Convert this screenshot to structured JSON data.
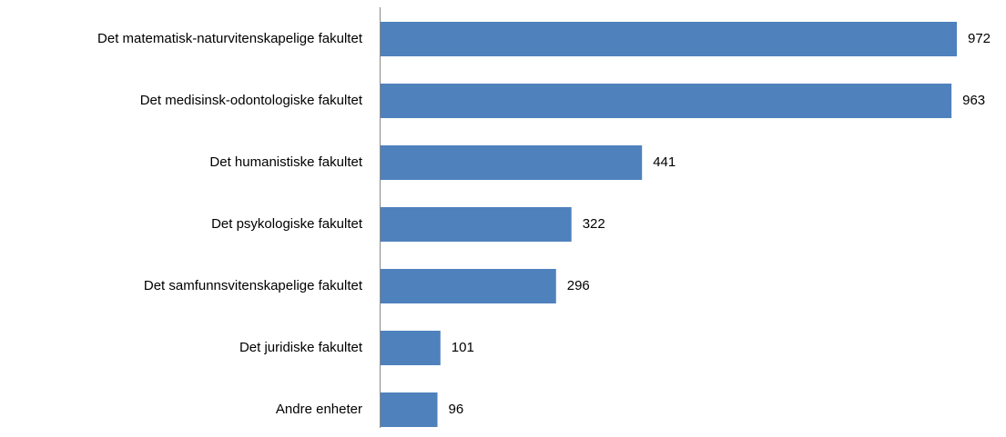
{
  "chart_data": {
    "type": "bar",
    "orientation": "horizontal",
    "color": "#4f81bd",
    "categories": [
      "Det matematisk-naturvitenskapelige fakultet",
      "Det medisinsk-odontologiske fakultet",
      "Det humanistiske fakultet",
      "Det psykologiske fakultet",
      "Det samfunnsvitenskapelige fakultet",
      "Det juridiske fakultet",
      "Andre enheter"
    ],
    "values": [
      972,
      963,
      441,
      322,
      296,
      101,
      96
    ]
  }
}
